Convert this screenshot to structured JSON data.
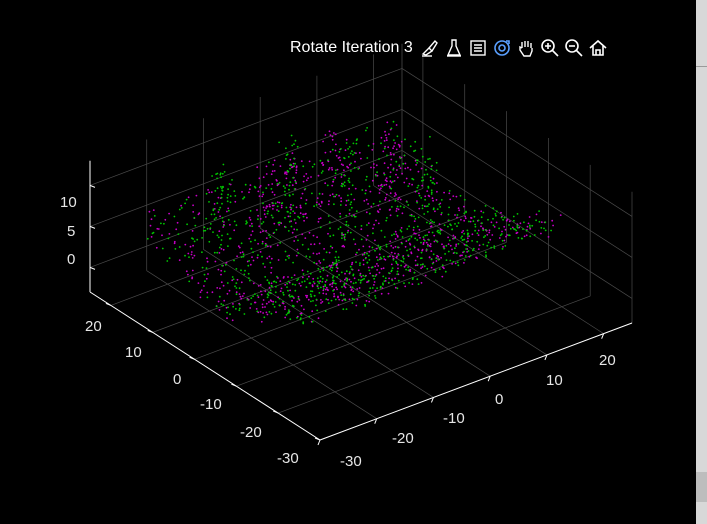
{
  "toolbar": {
    "title": "Rotate Iteration 3",
    "buttons": [
      {
        "name": "brush-icon"
      },
      {
        "name": "data-tips-icon"
      },
      {
        "name": "legend-icon"
      },
      {
        "name": "rotate-3d-icon",
        "active": true
      },
      {
        "name": "pan-hand-icon"
      },
      {
        "name": "zoom-in-icon"
      },
      {
        "name": "zoom-out-icon"
      },
      {
        "name": "home-icon"
      }
    ]
  },
  "colors": {
    "background": "#000000",
    "series_a": "#c800c8",
    "series_b": "#00c800",
    "axes": "#ffffff",
    "grid": "#4a4a4a",
    "active_tool": "#5aa0ff"
  },
  "chart_data": {
    "type": "scatter",
    "view": "3d",
    "title": "",
    "xlabel": "",
    "ylabel": "",
    "zlabel": "",
    "grid": true,
    "xlim": [
      -30,
      25
    ],
    "ylim": [
      -30,
      25
    ],
    "zlim": [
      -3,
      13
    ],
    "x_ticks": [
      "-30",
      "-20",
      "-10",
      "0",
      "10",
      "20"
    ],
    "y_ticks": [
      "-30",
      "-20",
      "-10",
      "0",
      "10",
      "20"
    ],
    "z_ticks": [
      "0",
      "5",
      "10"
    ],
    "series": [
      {
        "color": "#c800c8",
        "points": 900
      },
      {
        "color": "#00c800",
        "points": 900
      }
    ]
  }
}
